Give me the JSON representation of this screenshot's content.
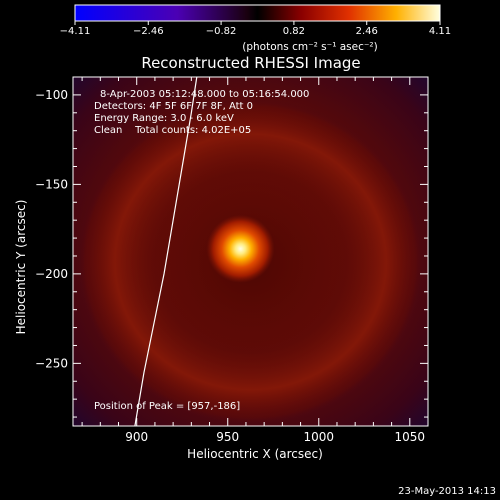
{
  "colorbar": {
    "tick_labels": [
      "-4.11",
      "-2.46",
      "-0.82",
      "0.82",
      "2.46",
      "4.11"
    ],
    "unit_label": "(photons cm⁻² s⁻¹ asec⁻²)",
    "range": [
      -4.11,
      4.11
    ]
  },
  "chart_data": {
    "type": "heatmap",
    "title": "Reconstructed RHESSI Image",
    "xlabel": "Heliocentric X (arcsec)",
    "ylabel": "Heliocentric Y (arcsec)",
    "xlim": [
      865,
      1060
    ],
    "ylim": [
      -285,
      -90
    ],
    "x_ticks": [
      900,
      950,
      1000,
      1050
    ],
    "y_ticks": [
      -100,
      -150,
      -200,
      -250
    ],
    "peak_position": [
      957,
      -186
    ],
    "peak_value": 4.11,
    "limb_curve": [
      [
        933,
        -90
      ],
      [
        930,
        -110
      ],
      [
        925,
        -140
      ],
      [
        920,
        -170
      ],
      [
        915,
        -200
      ],
      [
        909,
        -230
      ],
      [
        904,
        -255
      ],
      [
        899,
        -285
      ]
    ],
    "annotations": [
      "8-Apr-2003 05:12:48.000 to 05:16:54.000",
      "Detectors: 4F 5F 6F 7F 8F, Att 0",
      "Energy Range: 3.0 - 6.0 keV",
      "Clean    Total counts: 4.02E+05",
      "Position of Peak = [957,-186]"
    ],
    "timestamp": "23-May-2013 14:13"
  }
}
